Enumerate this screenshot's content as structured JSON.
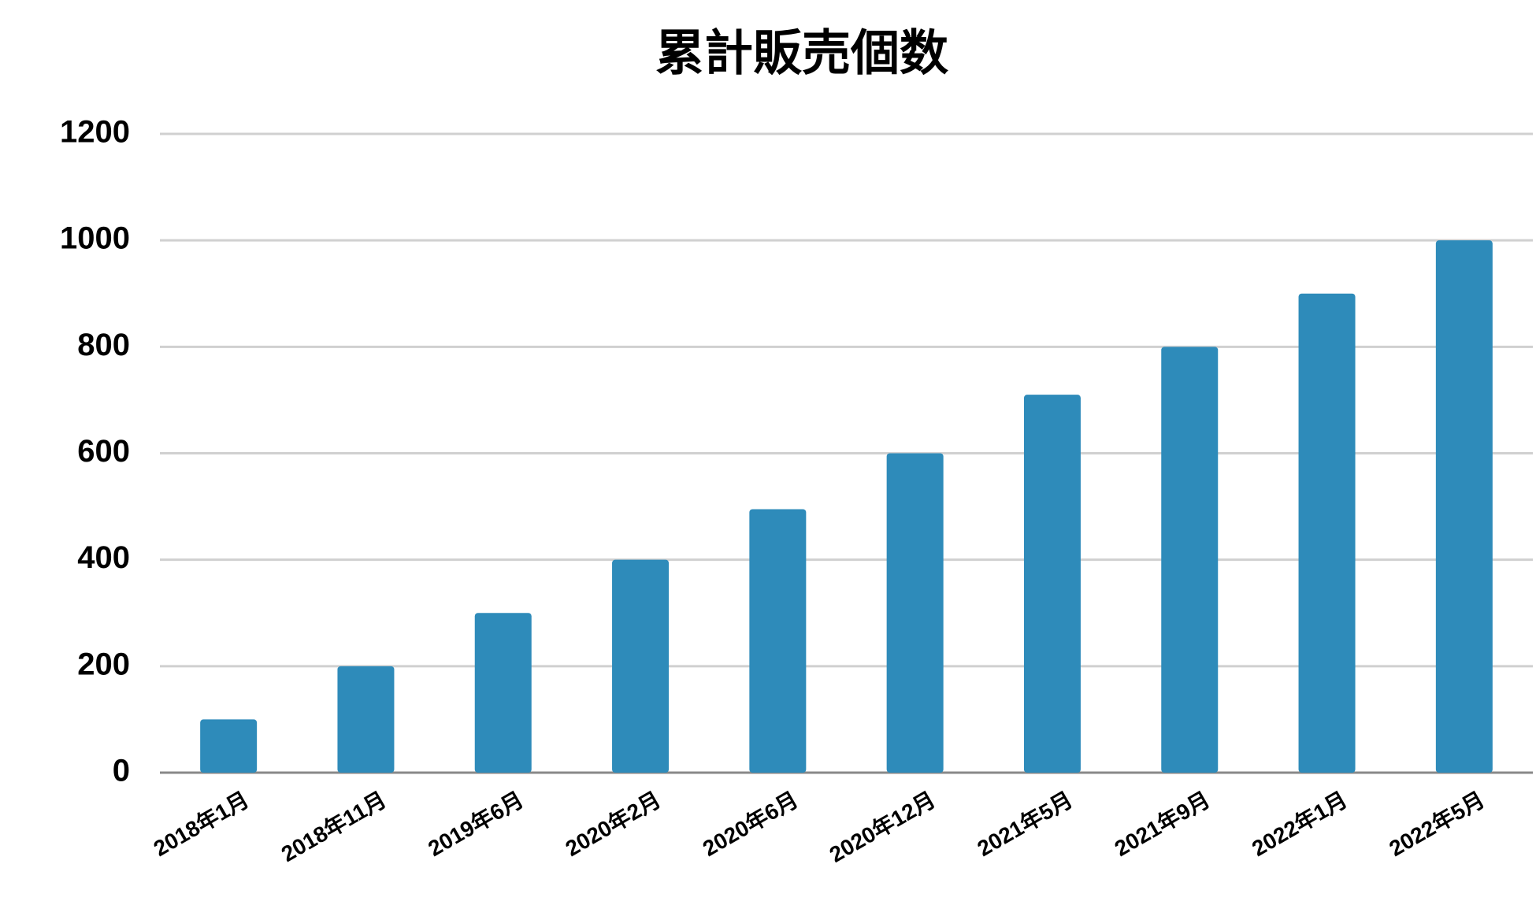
{
  "chart_data": {
    "type": "bar",
    "title": "累計販売個数",
    "categories": [
      "2018年1月",
      "2018年11月",
      "2019年6月",
      "2020年2月",
      "2020年6月",
      "2020年12月",
      "2021年5月",
      "2021年9月",
      "2022年1月",
      "2022年5月"
    ],
    "values": [
      100,
      200,
      300,
      400,
      495,
      600,
      710,
      800,
      900,
      1000
    ],
    "color": "#2e8bba",
    "ylim": [
      0,
      1200
    ],
    "yticks": [
      0,
      200,
      400,
      600,
      800,
      1000,
      1200
    ],
    "grid": true
  }
}
